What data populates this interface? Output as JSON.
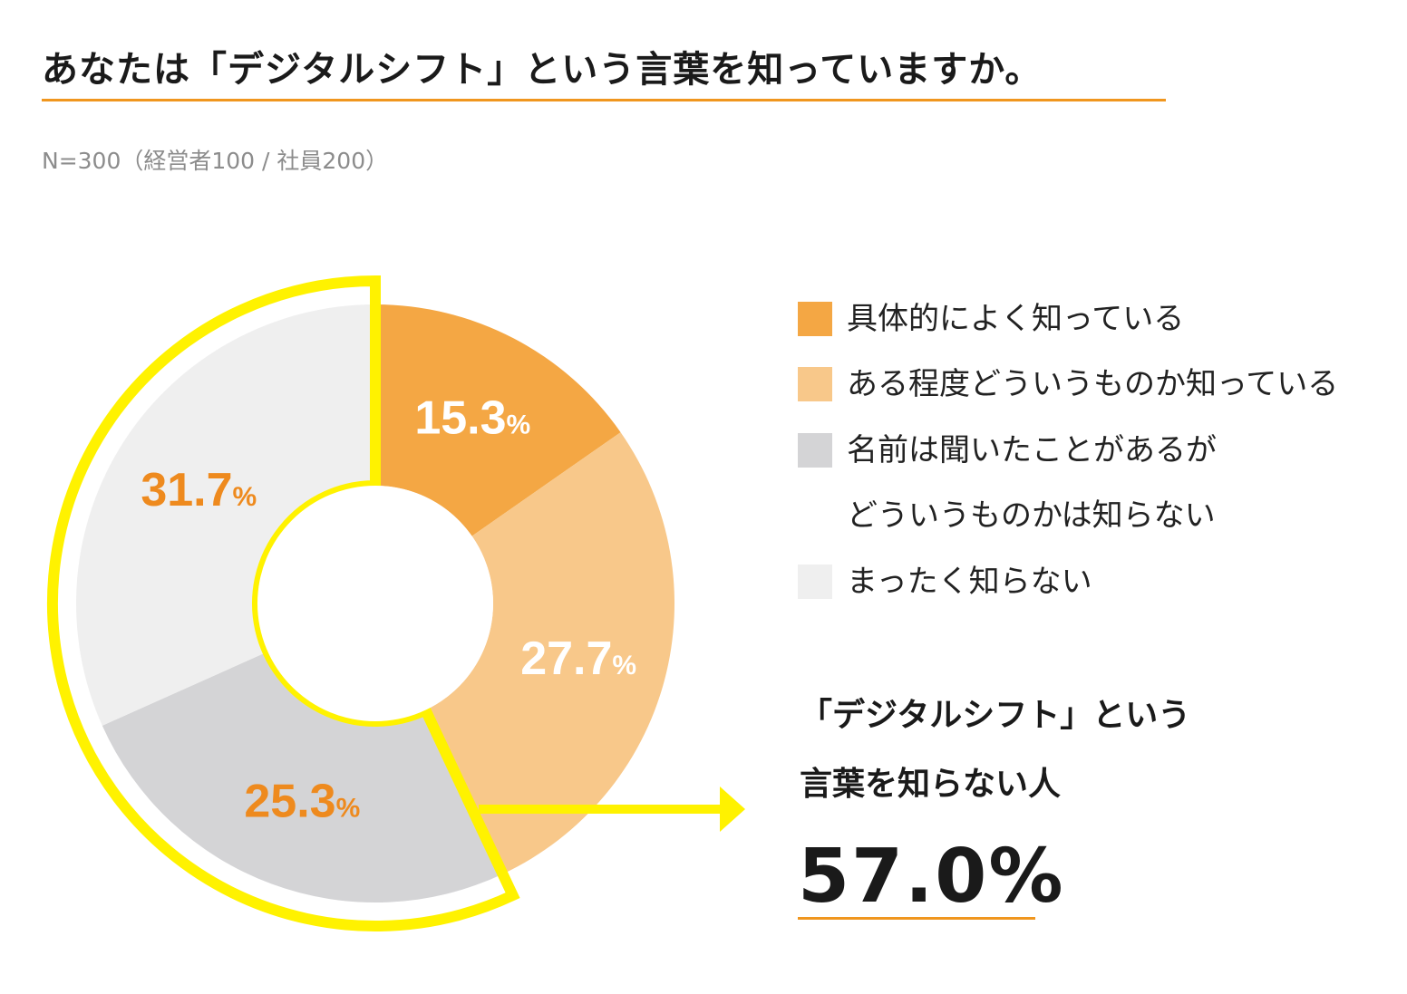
{
  "title": "あなたは「デジタルシフト」という言葉を知っていますか。",
  "subtitle": "N=300（経営者100 / 社員200）",
  "colors": {
    "accent_rule": "#f0961e",
    "highlight": "#fff200",
    "arrow": "#fff200",
    "label_white": "#ffffff",
    "label_orange": "#ee8a1e"
  },
  "chart_data": {
    "type": "pie",
    "variant": "donut",
    "title": "あなたは「デジタルシフト」という言葉を知っていますか。",
    "unit": "%",
    "categories": [
      "具体的によく知っている",
      "ある程度どういうものか知っている",
      "名前は聞いたことがあるがどういうものかは知らない",
      "まったく知らない"
    ],
    "values": [
      15.3,
      27.7,
      25.3,
      31.7
    ],
    "labels": [
      "15.3",
      "27.7",
      "25.3",
      "31.7"
    ],
    "colors": [
      "#f4a744",
      "#f8c88a",
      "#d4d4d6",
      "#efefef"
    ],
    "highlighted_categories": [
      "名前は聞いたことがあるがどういうものかは知らない",
      "まったく知らない"
    ]
  },
  "legend": {
    "items": [
      {
        "line1": "具体的によく知っている",
        "line2": ""
      },
      {
        "line1": "ある程度どういうものか知っている",
        "line2": ""
      },
      {
        "line1": "名前は聞いたことがあるが",
        "line2": "どういうものかは知らない"
      },
      {
        "line1": "まったく知らない",
        "line2": ""
      }
    ]
  },
  "callout": {
    "line1": "「デジタルシフト」という",
    "line2": "言葉を知らない人",
    "value": "57.0%"
  }
}
